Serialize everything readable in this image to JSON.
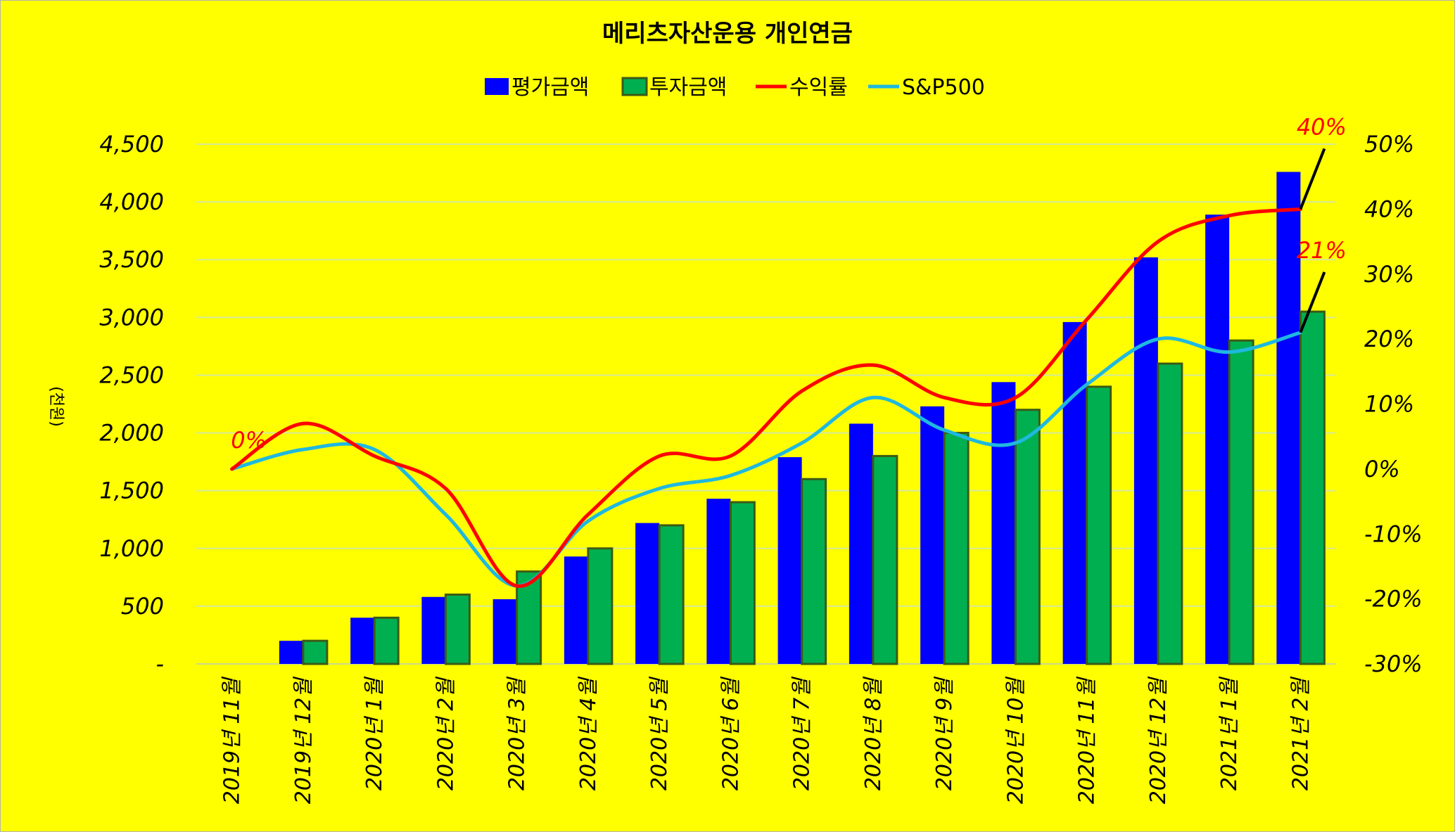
{
  "chart_data": {
    "type": "bar",
    "title": "메리츠자산운용 개인연금",
    "ylabel": "(천원)",
    "categories": [
      "2019년 11월",
      "2019년 12월",
      "2020년 1월",
      "2020년 2월",
      "2020년 3월",
      "2020년 4월",
      "2020년 5월",
      "2020년 6월",
      "2020년 7월",
      "2020년 8월",
      "2020년 9월",
      "2020년 10월",
      "2020년 11월",
      "2020년 12월",
      "2021년 1월",
      "2021년 2월"
    ],
    "y_left": {
      "min": 0,
      "max": 4500,
      "step": 500,
      "tick_labels": [
        "-",
        "500",
        "1,000",
        "1,500",
        "2,000",
        "2,500",
        "3,000",
        "3,500",
        "4,000",
        "4,500"
      ]
    },
    "y_right": {
      "min": -30,
      "max": 50,
      "step": 10,
      "tick_labels": [
        "-30%",
        "-20%",
        "-10%",
        "0%",
        "10%",
        "20%",
        "30%",
        "40%",
        "50%"
      ]
    },
    "grid": true,
    "legend_position": "top-center",
    "series": [
      {
        "name": "평가금액",
        "kind": "bar",
        "axis": "left",
        "color": "#0000ff",
        "values": [
          0,
          200,
          400,
          580,
          560,
          930,
          1220,
          1430,
          1790,
          2080,
          2230,
          2440,
          2960,
          3520,
          3890,
          4260
        ]
      },
      {
        "name": "투자금액",
        "kind": "bar",
        "axis": "left",
        "color": "#00b050",
        "values": [
          0,
          200,
          400,
          600,
          800,
          1000,
          1200,
          1400,
          1600,
          1800,
          2000,
          2200,
          2400,
          2600,
          2800,
          3050
        ]
      },
      {
        "name": "수익률",
        "kind": "line",
        "axis": "right",
        "color": "#ff0000",
        "values": [
          0,
          7,
          2,
          -3,
          -18,
          -7,
          2,
          2,
          12,
          16,
          11,
          11,
          23,
          35,
          39,
          40
        ]
      },
      {
        "name": "S&P500",
        "kind": "line",
        "axis": "right",
        "color": "#1fb8e0",
        "values": [
          0,
          3,
          3,
          -7,
          -18,
          -8,
          -3,
          -1,
          4,
          11,
          6,
          4,
          13,
          20,
          18,
          21
        ]
      }
    ],
    "annotations": [
      {
        "text": "0%",
        "series": "수익률",
        "index": 0
      },
      {
        "text": "40%",
        "series": "수익률",
        "index": 15
      },
      {
        "text": "21%",
        "series": "S&P500",
        "index": 15
      }
    ]
  }
}
